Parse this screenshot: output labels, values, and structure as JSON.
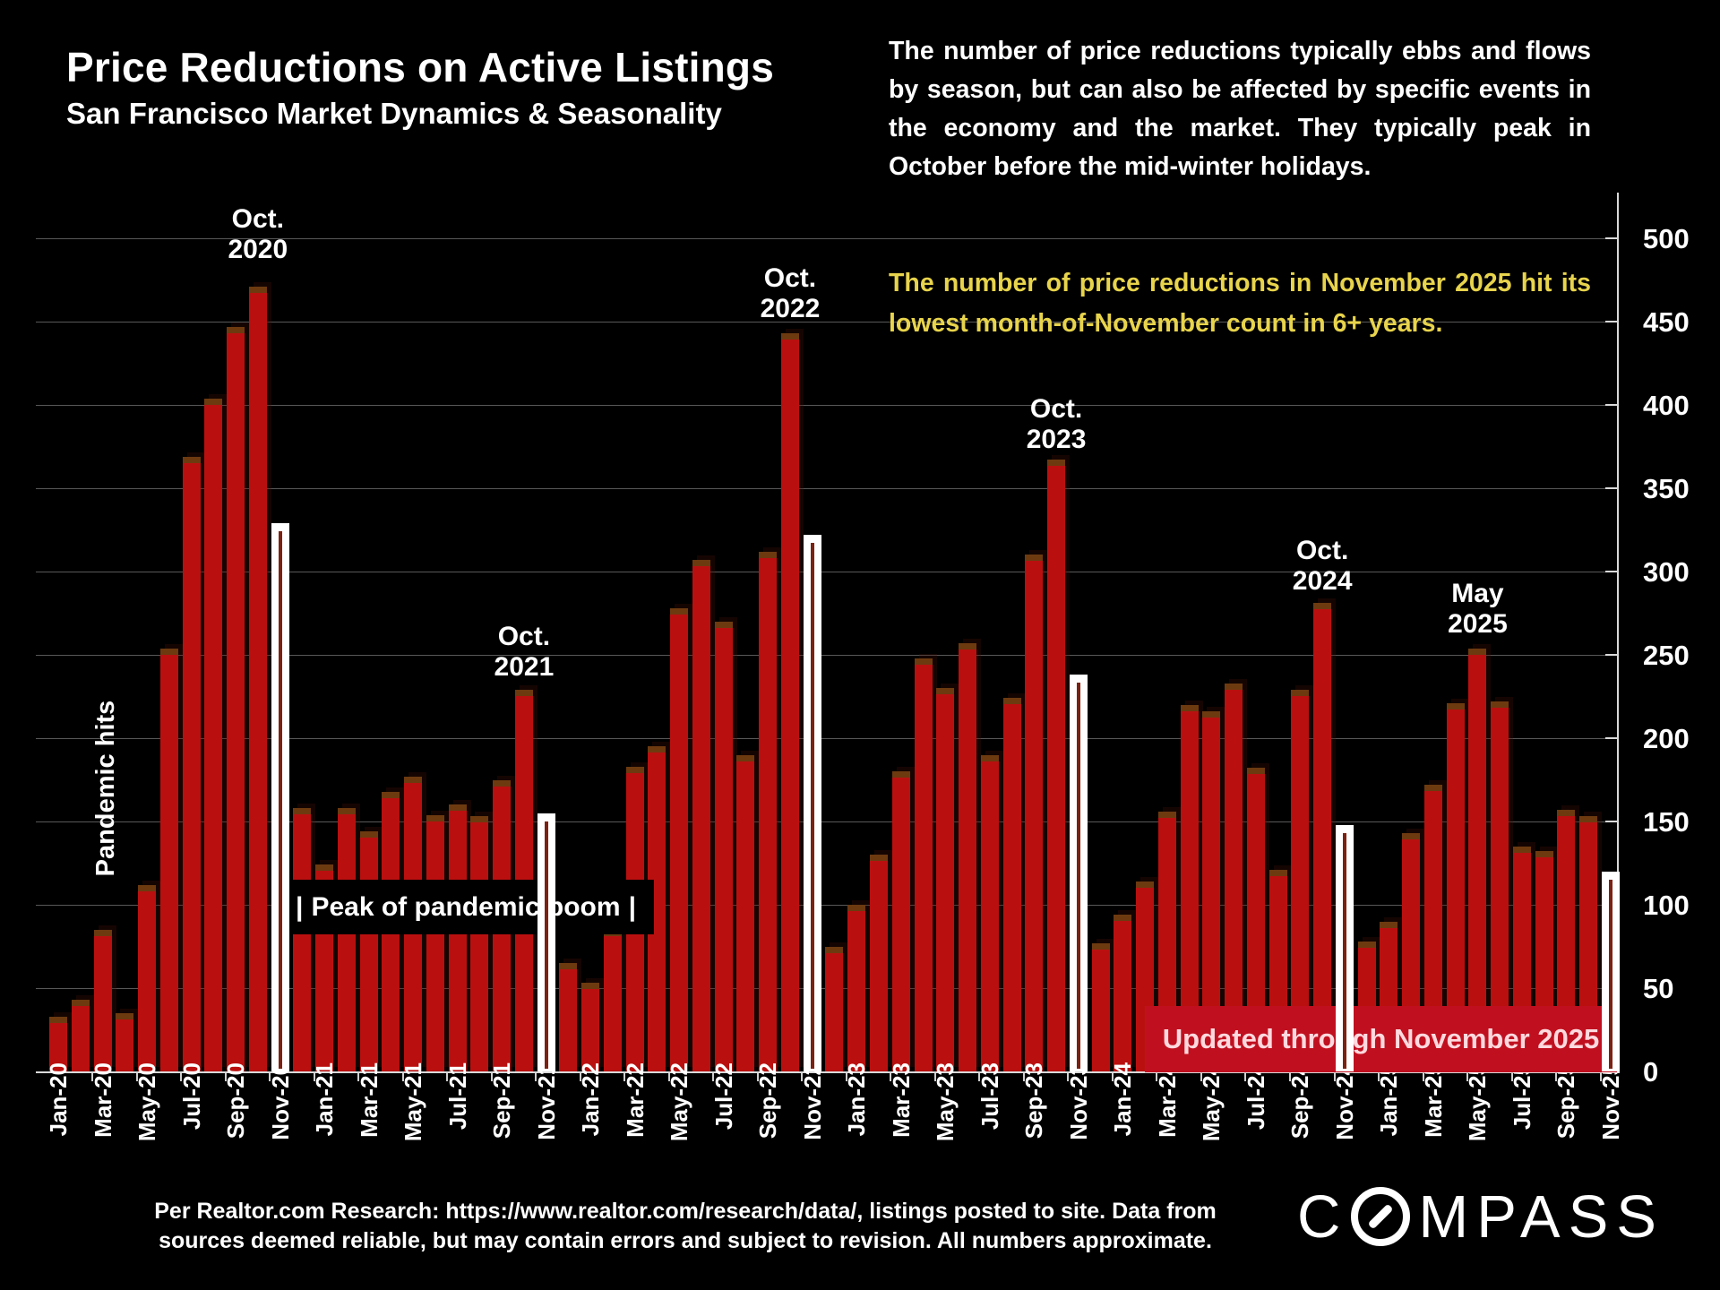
{
  "header": {
    "title": "Price Reductions on Active Listings",
    "subtitle": "San Francisco Market Dynamics & Seasonality"
  },
  "commentary": {
    "paragraph": "The number of price reductions typically ebbs and flows by season, but can also be affected by specific events in the economy and the market. They typically peak in October before the mid-winter holidays.",
    "highlight": "The number of price reductions in November 2025 hit its lowest month-of-November count in 6+ years."
  },
  "annotations": {
    "pandemic_hits": "Pandemic hits",
    "peak_box": {
      "left_pipe": "|",
      "text": "Peak of pandemic boom",
      "right_pipe": "|"
    },
    "peak_labels": [
      {
        "month": "Oct-20",
        "line1": "Oct.",
        "line2": "2020"
      },
      {
        "month": "Oct-21",
        "line1": "Oct.",
        "line2": "2021"
      },
      {
        "month": "Oct-22",
        "line1": "Oct.",
        "line2": "2022"
      },
      {
        "month": "Oct-23",
        "line1": "Oct.",
        "line2": "2023"
      },
      {
        "month": "Oct-24",
        "line1": "Oct.",
        "line2": "2024"
      },
      {
        "month": "May-25",
        "line1": "May",
        "line2": "2025"
      }
    ],
    "banner": "Updated through November 2025"
  },
  "footer": {
    "line1": "Per Realtor.com Research:  https://www.realtor.com/research/data/, listings posted to site. Data from",
    "line2": "sources deemed reliable, but may contain errors and subject to revision. All numbers approximate.",
    "logo_left": "C",
    "logo_right": "MPASS"
  },
  "chart_data": {
    "type": "bar",
    "title": "Price Reductions on Active Listings",
    "subtitle": "San Francisco Market Dynamics & Seasonality",
    "xlabel": "",
    "ylabel": "",
    "ylim": [
      0,
      500
    ],
    "ytick_step": 50,
    "yticks": [
      0,
      50,
      100,
      150,
      200,
      250,
      300,
      350,
      400,
      450,
      500
    ],
    "x_tick_label_every": 2,
    "grid": true,
    "axis_side": "right",
    "x": [
      "Jan-20",
      "Feb-20",
      "Mar-20",
      "Apr-20",
      "May-20",
      "Jun-20",
      "Jul-20",
      "Aug-20",
      "Sep-20",
      "Oct-20",
      "Nov-20",
      "Dec-20",
      "Jan-21",
      "Feb-21",
      "Mar-21",
      "Apr-21",
      "May-21",
      "Jun-21",
      "Jul-21",
      "Aug-21",
      "Sep-21",
      "Oct-21",
      "Nov-21",
      "Dec-21",
      "Jan-22",
      "Feb-22",
      "Mar-22",
      "Apr-22",
      "May-22",
      "Jun-22",
      "Jul-22",
      "Aug-22",
      "Sep-22",
      "Oct-22",
      "Nov-22",
      "Dec-22",
      "Jan-23",
      "Feb-23",
      "Mar-23",
      "Apr-23",
      "May-23",
      "Jun-23",
      "Jul-23",
      "Aug-23",
      "Sep-23",
      "Oct-23",
      "Nov-23",
      "Dec-23",
      "Jan-24",
      "Feb-24",
      "Mar-24",
      "Apr-24",
      "May-24",
      "Jun-24",
      "Jul-24",
      "Aug-24",
      "Sep-24",
      "Oct-24",
      "Nov-24",
      "Dec-24",
      "Jan-25",
      "Feb-25",
      "Mar-25",
      "Apr-25",
      "May-25",
      "Jun-25",
      "Jul-25",
      "Aug-25",
      "Sep-25",
      "Oct-25",
      "Nov-25"
    ],
    "values": [
      33,
      43,
      85,
      35,
      112,
      254,
      369,
      404,
      447,
      471,
      329,
      158,
      124,
      158,
      144,
      168,
      177,
      154,
      160,
      153,
      175,
      229,
      155,
      65,
      53,
      85,
      183,
      195,
      278,
      307,
      270,
      190,
      312,
      443,
      322,
      75,
      100,
      130,
      180,
      248,
      230,
      257,
      190,
      224,
      310,
      367,
      238,
      77,
      94,
      114,
      156,
      220,
      216,
      233,
      182,
      121,
      229,
      281,
      148,
      78,
      90,
      143,
      172,
      221,
      254,
      222,
      135,
      132,
      157,
      153,
      120
    ],
    "highlighted_months": [
      "Nov-20",
      "Nov-21",
      "Nov-22",
      "Nov-23",
      "Nov-24",
      "Nov-25"
    ],
    "colors": {
      "bar": "#b9100f",
      "bar_cap": "#6d3a10",
      "highlight_bar": "#ffffff",
      "highlight_text": "#e8d44c",
      "banner_bg": "#c01020",
      "background": "#000000"
    }
  }
}
